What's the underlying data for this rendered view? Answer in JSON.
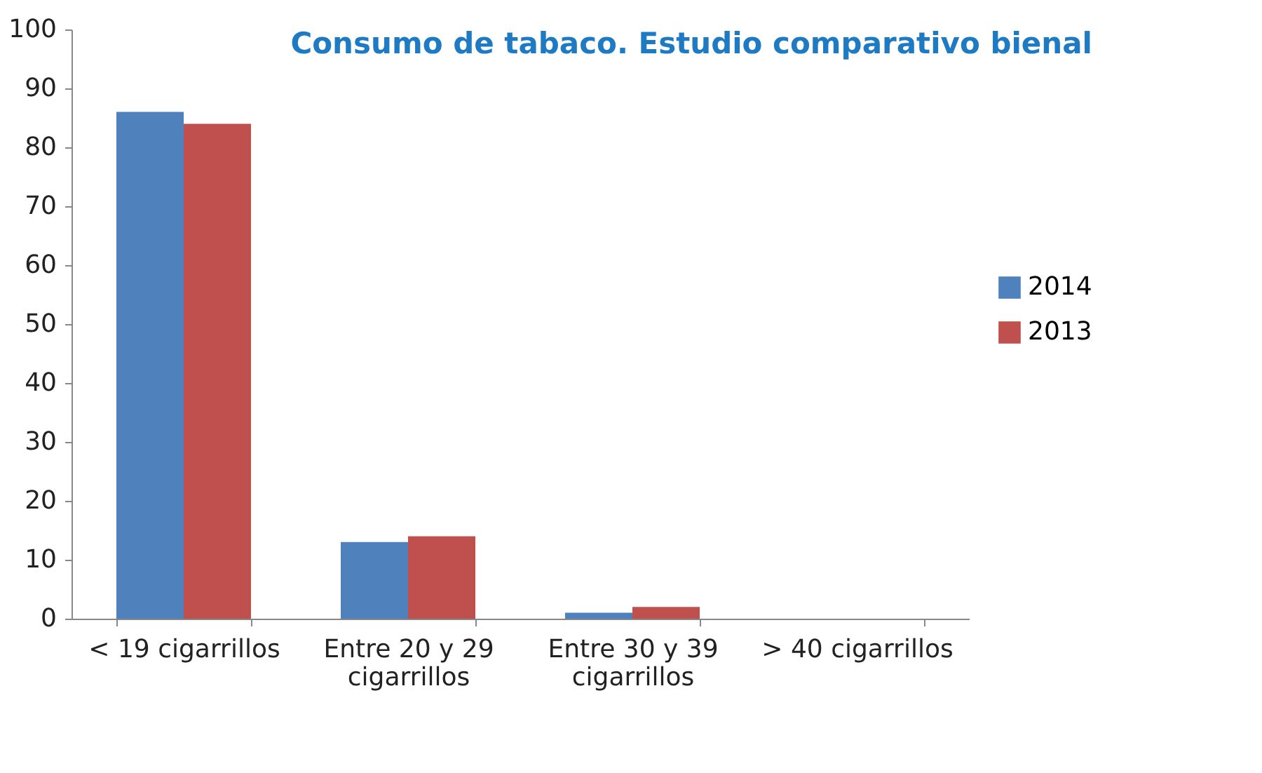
{
  "chart_data": {
    "type": "bar",
    "title": "Consumo de tabaco. Estudio comparativo bienal",
    "categories": [
      "< 19 cigarrillos",
      "Entre 20 y 29 cigarrillos",
      "Entre 30 y 39 cigarrillos",
      "> 40 cigarrillos"
    ],
    "series": [
      {
        "name": "2014",
        "color": "#4f81bd",
        "values": [
          86,
          13,
          1,
          0
        ]
      },
      {
        "name": "2013",
        "color": "#c0504d",
        "values": [
          84,
          14,
          2,
          0
        ]
      }
    ],
    "ylim": [
      0,
      100
    ],
    "yticks": [
      0,
      10,
      20,
      30,
      40,
      50,
      60,
      70,
      80,
      90,
      100
    ],
    "grid": false,
    "legend": "right"
  }
}
